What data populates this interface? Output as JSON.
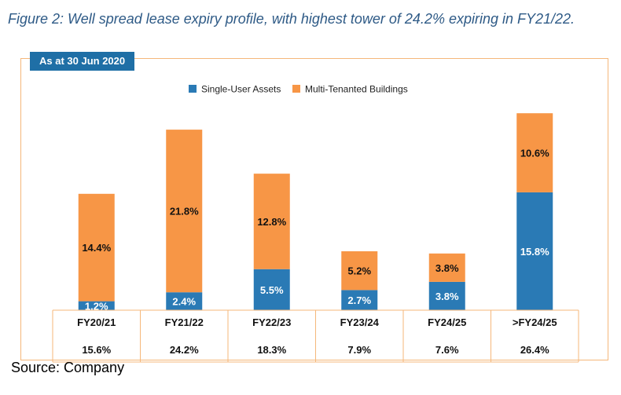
{
  "figure_caption": "Figure 2: Well spread lease expiry profile, with highest tower of 24.2% expiring in FY21/22.",
  "as_at_label": "As at 30 Jun 2020",
  "source": "Source: Company",
  "colors": {
    "single_user": "#2a7ab5",
    "multi_tenanted": "#f79646",
    "frame": "#f5b77a",
    "tag": "#1f6fa6"
  },
  "chart_data": {
    "type": "bar",
    "stacked": true,
    "categories": [
      "FY20/21",
      "FY21/22",
      "FY22/23",
      "FY23/24",
      "FY24/25",
      ">FY24/25"
    ],
    "series": [
      {
        "name": "Single-User Assets",
        "values": [
          1.2,
          2.4,
          5.5,
          2.7,
          3.8,
          15.8
        ],
        "labels": [
          "1.2%",
          "2.4%",
          "5.5%",
          "2.7%",
          "3.8%",
          "15.8%"
        ]
      },
      {
        "name": "Multi-Tenanted Buildings",
        "values": [
          14.4,
          21.8,
          12.8,
          5.2,
          3.8,
          10.6
        ],
        "labels": [
          "14.4%",
          "21.8%",
          "12.8%",
          "5.2%",
          "3.8%",
          "10.6%"
        ]
      }
    ],
    "totals": [
      "15.6%",
      "24.2%",
      "18.3%",
      "7.9%",
      "7.6%",
      "26.4%"
    ],
    "legend": "top-center",
    "grid": false,
    "ylim": [
      0,
      27
    ]
  }
}
